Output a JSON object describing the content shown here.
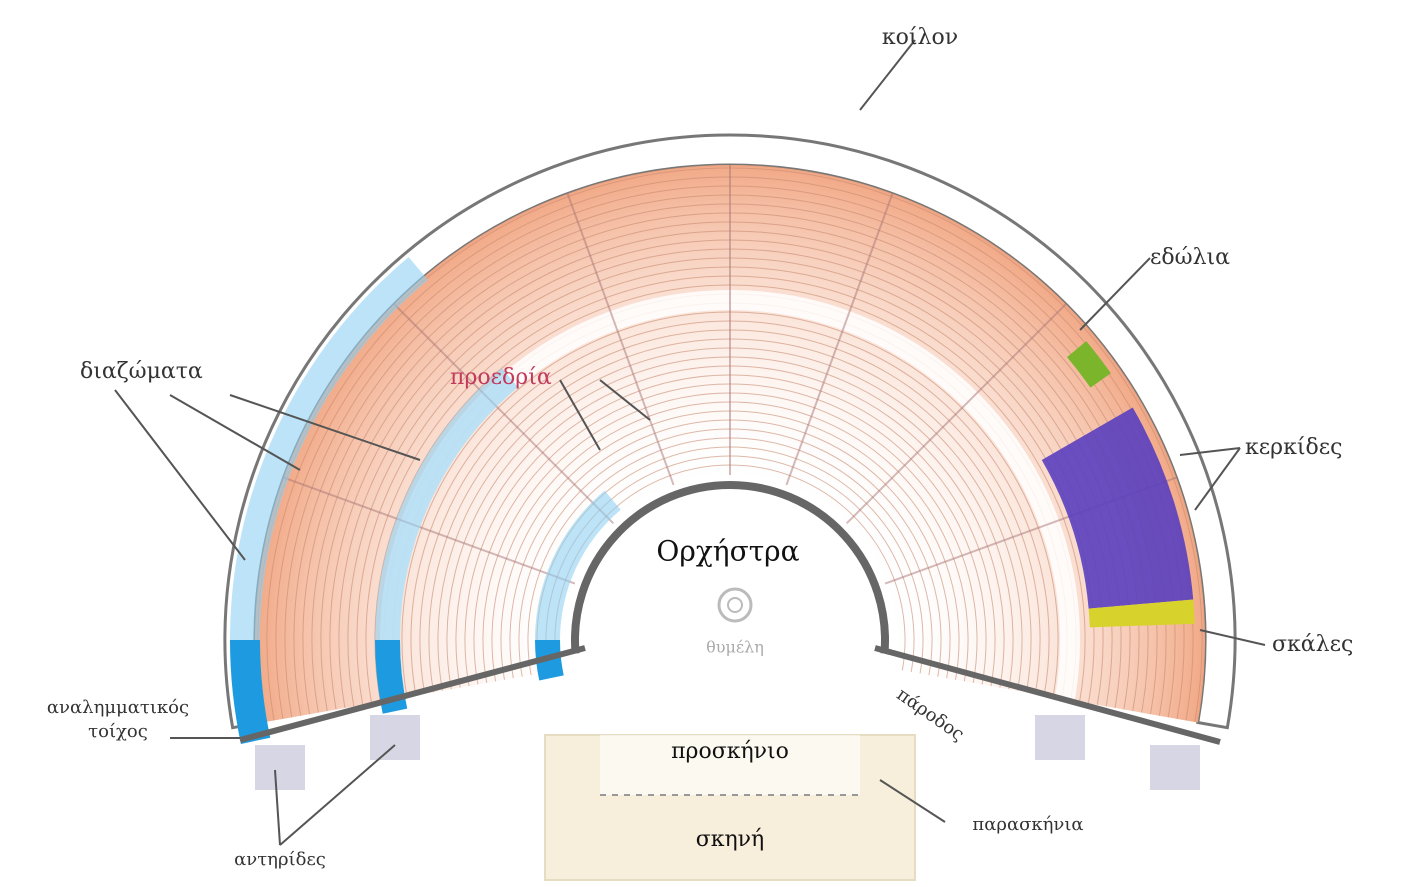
{
  "labels": {
    "koilon": "κοίλον",
    "edolia": "εδώλια",
    "diazomata": "διαζώματα",
    "proedria": "προεδρία",
    "kerkides": "κερκίδες",
    "orchestra": "Ορχήστρα",
    "thymeli": "θυμέλη",
    "klimakes": "σκάλες",
    "analimmatikos_line1": "αναλημματικός",
    "analimmatikos_line2": "τοίχος",
    "parodos": "πάροδος",
    "proskinio": "προσκήνιο",
    "paraskinia": "παρασκήνια",
    "skini": "σκηνή",
    "antirides": "αντηρίδες"
  }
}
